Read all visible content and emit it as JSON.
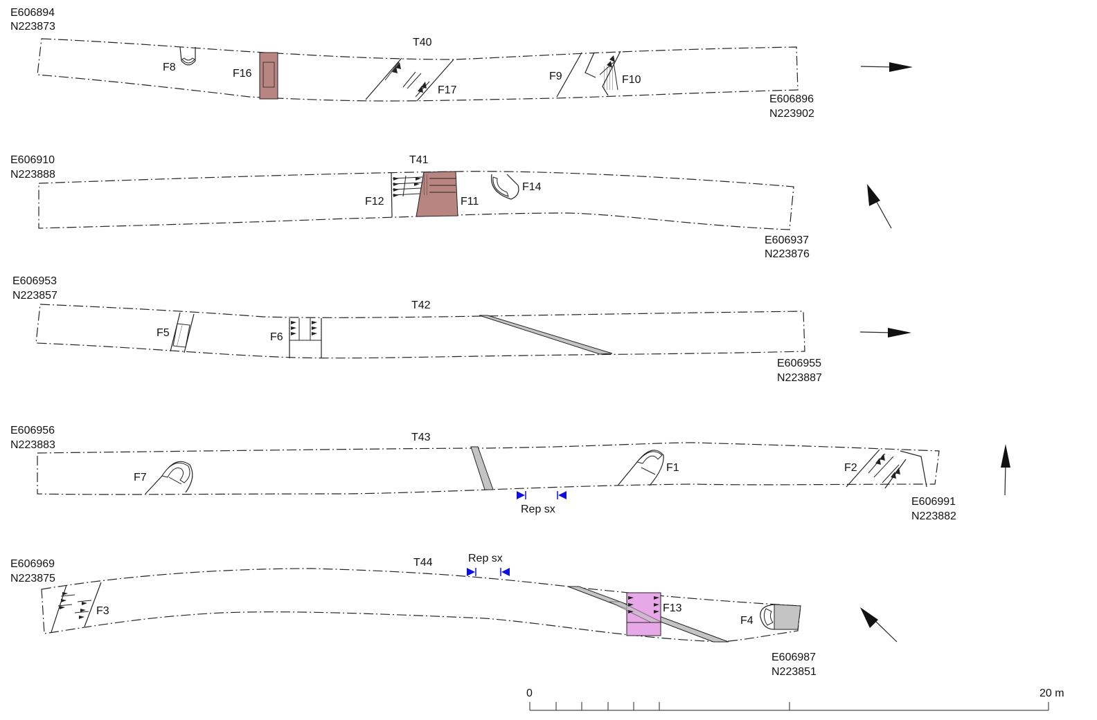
{
  "trenches": [
    {
      "id": "T40",
      "label": "T40",
      "start": {
        "e": "E606894",
        "n": "N223873"
      },
      "end": {
        "e": "E606896",
        "n": "N223902"
      },
      "features": [
        "F8",
        "F16",
        "F17",
        "F9",
        "F10"
      ]
    },
    {
      "id": "T41",
      "label": "T41",
      "start": {
        "e": "E606910",
        "n": "N223888"
      },
      "end": {
        "e": "E606937",
        "n": "N223876"
      },
      "features": [
        "F12",
        "F11",
        "F14"
      ]
    },
    {
      "id": "T42",
      "label": "T42",
      "start": {
        "e": "E606953",
        "n": "N223857"
      },
      "end": {
        "e": "E606955",
        "n": "N223887"
      },
      "features": [
        "F5",
        "F6"
      ]
    },
    {
      "id": "T43",
      "label": "T43",
      "start": {
        "e": "E606956",
        "n": "N223883"
      },
      "end": {
        "e": "E606991",
        "n": "N223882"
      },
      "features": [
        "F7",
        "F1",
        "F2"
      ],
      "rep_label": "Rep sx"
    },
    {
      "id": "T44",
      "label": "T44",
      "start": {
        "e": "E606969",
        "n": "N223875"
      },
      "end": {
        "e": "E606987",
        "n": "N223851"
      },
      "features": [
        "F3",
        "F13",
        "F4"
      ],
      "rep_label": "Rep sx"
    }
  ],
  "scale_bar": {
    "min_label": "0",
    "max_label": "20 m"
  },
  "colors": {
    "fill_brown": "#b98580",
    "fill_pink": "#e6a8e6",
    "fill_grey": "#c4c4c4",
    "section_marker": "#1010dd",
    "line": "#222222"
  },
  "north_arrow_icon": "north-arrow-icon"
}
